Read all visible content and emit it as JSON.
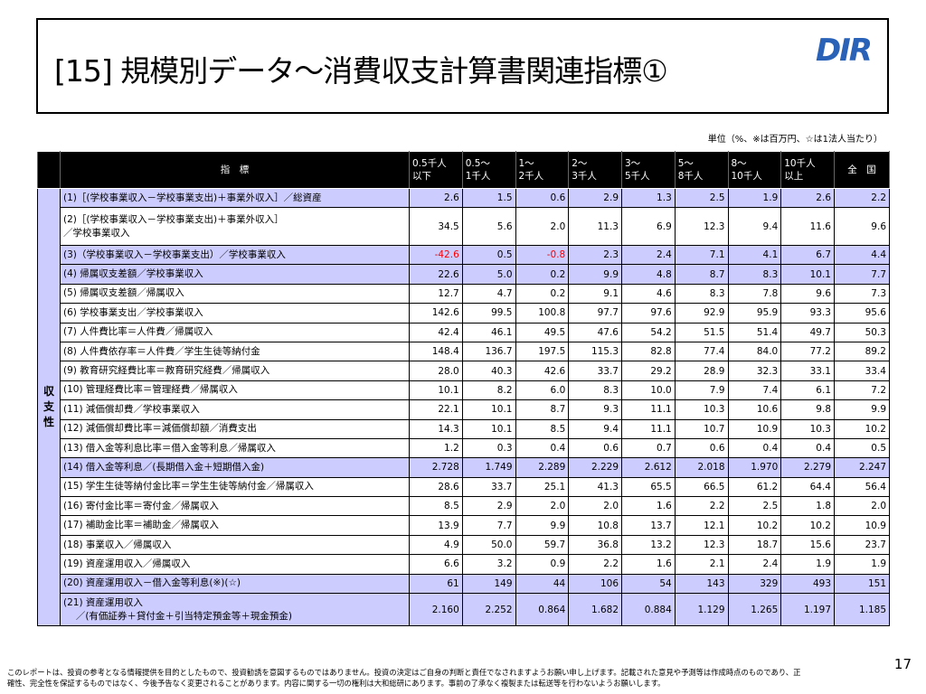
{
  "header": {
    "title": "[15] 規模別データ～消費収支計算書関連指標①",
    "logo": "DIR"
  },
  "unit_note": "単位（%、※は百万円、☆は1法人当たり）",
  "table": {
    "side_label": "収支性",
    "indicator_header": "指　標",
    "columns": [
      [
        "0.5千人",
        "以下"
      ],
      [
        "0.5～",
        "1千人"
      ],
      [
        "1～",
        "2千人"
      ],
      [
        "2～",
        "3千人"
      ],
      [
        "3～",
        "5千人"
      ],
      [
        "5～",
        "8千人"
      ],
      [
        "8～",
        "10千人"
      ],
      [
        "10千人",
        "以上"
      ],
      [
        "全　国"
      ]
    ],
    "highlight_color": "#ccccff",
    "negative_color": "#ff0000",
    "rows": [
      {
        "label": [
          "(1)［(学校事業収入－学校事業支出)＋事業外収入］／総資産"
        ],
        "highlight": true,
        "values": [
          "2.6",
          "1.5",
          "0.6",
          "2.9",
          "1.3",
          "2.5",
          "1.9",
          "2.6",
          "2.2"
        ]
      },
      {
        "label": [
          "(2)［(学校事業収入－学校事業支出)＋事業外収入］",
          "／学校事業収入"
        ],
        "highlight": false,
        "values": [
          "34.5",
          "5.6",
          "2.0",
          "11.3",
          "6.9",
          "12.3",
          "9.4",
          "11.6",
          "9.6"
        ]
      },
      {
        "label": [
          "(3)（学校事業収入－学校事業支出）／学校事業収入"
        ],
        "highlight": true,
        "values": [
          "-42.6",
          "0.5",
          "-0.8",
          "2.3",
          "2.4",
          "7.1",
          "4.1",
          "6.7",
          "4.4"
        ]
      },
      {
        "label": [
          "(4) 帰属収支差額／学校事業収入"
        ],
        "highlight": true,
        "values": [
          "22.6",
          "5.0",
          "0.2",
          "9.9",
          "4.8",
          "8.7",
          "8.3",
          "10.1",
          "7.7"
        ]
      },
      {
        "label": [
          "(5) 帰属収支差額／帰属収入"
        ],
        "highlight": false,
        "values": [
          "12.7",
          "4.7",
          "0.2",
          "9.1",
          "4.6",
          "8.3",
          "7.8",
          "9.6",
          "7.3"
        ]
      },
      {
        "label": [
          "(6) 学校事業支出／学校事業収入"
        ],
        "highlight": false,
        "values": [
          "142.6",
          "99.5",
          "100.8",
          "97.7",
          "97.6",
          "92.9",
          "95.9",
          "93.3",
          "95.6"
        ]
      },
      {
        "label": [
          "(7) 人件費比率＝人件費／帰属収入"
        ],
        "highlight": false,
        "values": [
          "42.4",
          "46.1",
          "49.5",
          "47.6",
          "54.2",
          "51.5",
          "51.4",
          "49.7",
          "50.3"
        ]
      },
      {
        "label": [
          "(8) 人件費依存率＝人件費／学生生徒等納付金"
        ],
        "highlight": false,
        "values": [
          "148.4",
          "136.7",
          "197.5",
          "115.3",
          "82.8",
          "77.4",
          "84.0",
          "77.2",
          "89.2"
        ]
      },
      {
        "label": [
          "(9) 教育研究経費比率＝教育研究経費／帰属収入"
        ],
        "highlight": false,
        "values": [
          "28.0",
          "40.3",
          "42.6",
          "33.7",
          "29.2",
          "28.9",
          "32.3",
          "33.1",
          "33.4"
        ]
      },
      {
        "label": [
          "(10) 管理経費比率＝管理経費／帰属収入"
        ],
        "highlight": false,
        "values": [
          "10.1",
          "8.2",
          "6.0",
          "8.3",
          "10.0",
          "7.9",
          "7.4",
          "6.1",
          "7.2"
        ]
      },
      {
        "label": [
          "(11) 減価償却費／学校事業収入"
        ],
        "highlight": false,
        "values": [
          "22.1",
          "10.1",
          "8.7",
          "9.3",
          "11.1",
          "10.3",
          "10.6",
          "9.8",
          "9.9"
        ]
      },
      {
        "label": [
          "(12) 減価償却費比率＝減価償却額／消費支出"
        ],
        "highlight": false,
        "values": [
          "14.3",
          "10.1",
          "8.5",
          "9.4",
          "11.1",
          "10.7",
          "10.9",
          "10.3",
          "10.2"
        ]
      },
      {
        "label": [
          "(13) 借入金等利息比率＝借入金等利息／帰属収入"
        ],
        "highlight": false,
        "values": [
          "1.2",
          "0.3",
          "0.4",
          "0.6",
          "0.7",
          "0.6",
          "0.4",
          "0.4",
          "0.5"
        ]
      },
      {
        "label": [
          "(14) 借入金等利息／(長期借入金＋短期借入金)"
        ],
        "highlight": true,
        "values": [
          "2.728",
          "1.749",
          "2.289",
          "2.229",
          "2.612",
          "2.018",
          "1.970",
          "2.279",
          "2.247"
        ]
      },
      {
        "label": [
          "(15) 学生生徒等納付金比率＝学生生徒等納付金／帰属収入"
        ],
        "highlight": false,
        "values": [
          "28.6",
          "33.7",
          "25.1",
          "41.3",
          "65.5",
          "66.5",
          "61.2",
          "64.4",
          "56.4"
        ]
      },
      {
        "label": [
          "(16) 寄付金比率＝寄付金／帰属収入"
        ],
        "highlight": false,
        "values": [
          "8.5",
          "2.9",
          "2.0",
          "2.0",
          "1.6",
          "2.2",
          "2.5",
          "1.8",
          "2.0"
        ]
      },
      {
        "label": [
          "(17) 補助金比率＝補助金／帰属収入"
        ],
        "highlight": false,
        "values": [
          "13.9",
          "7.7",
          "9.9",
          "10.8",
          "13.7",
          "12.1",
          "10.2",
          "10.2",
          "10.9"
        ]
      },
      {
        "label": [
          "(18) 事業収入／帰属収入"
        ],
        "highlight": false,
        "values": [
          "4.9",
          "50.0",
          "59.7",
          "36.8",
          "13.2",
          "12.3",
          "18.7",
          "15.6",
          "23.7"
        ]
      },
      {
        "label": [
          "(19) 資産運用収入／帰属収入"
        ],
        "highlight": false,
        "values": [
          "6.6",
          "3.2",
          "0.9",
          "2.2",
          "1.6",
          "2.1",
          "2.4",
          "1.9",
          "1.9"
        ]
      },
      {
        "label": [
          "(20) 資産運用収入－借入金等利息(※)(☆)"
        ],
        "highlight": true,
        "values": [
          "61",
          "149",
          "44",
          "106",
          "54",
          "143",
          "329",
          "493",
          "151"
        ]
      },
      {
        "label": [
          "(21) 資産運用収入",
          "　 ／(有価証券＋貸付金＋引当特定預金等＋現金預金)"
        ],
        "highlight": true,
        "values": [
          "2.160",
          "2.252",
          "0.864",
          "1.682",
          "0.884",
          "1.129",
          "1.265",
          "1.197",
          "1.185"
        ]
      }
    ]
  },
  "footer": {
    "disclaimer": [
      "このレポートは、投資の参考となる情報提供を目的としたもので、投資勧誘を意図するものではありません。投資の決定はご自身の判断と責任でなされますようお願い申し上げます。記載された意見や予測等は作成時点のものであり、正",
      "確性、完全性を保証するものではなく、今後予告なく変更されることがあります。内容に関する一切の権利は大和総研にあります。事前の了承なく複製または転送等を行わないようお願いします。"
    ],
    "page_number": "17"
  }
}
